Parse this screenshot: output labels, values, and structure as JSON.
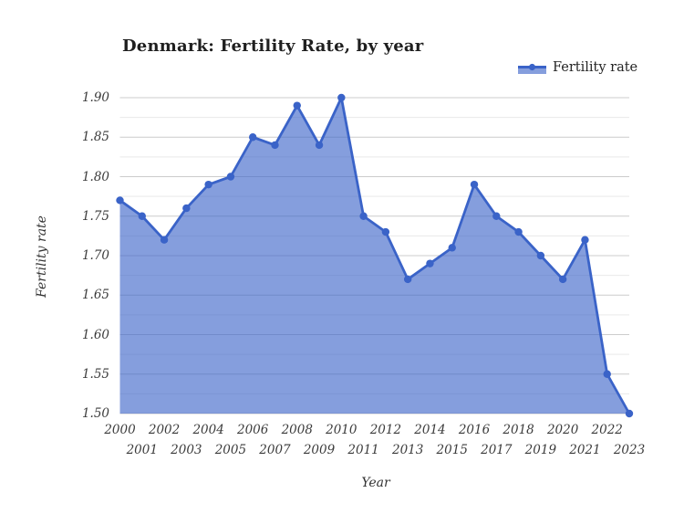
{
  "chart_data": {
    "type": "area",
    "title": "Denmark: Fertility Rate, by year",
    "xlabel": "Year",
    "ylabel": "Fertility rate",
    "legend_position": "top-right",
    "x": [
      2000,
      2001,
      2002,
      2003,
      2004,
      2005,
      2006,
      2007,
      2008,
      2009,
      2010,
      2011,
      2012,
      2013,
      2014,
      2015,
      2016,
      2017,
      2018,
      2019,
      2020,
      2021,
      2022,
      2023
    ],
    "series": [
      {
        "name": "Fertility rate",
        "values": [
          1.77,
          1.75,
          1.72,
          1.76,
          1.79,
          1.8,
          1.85,
          1.84,
          1.89,
          1.84,
          1.9,
          1.75,
          1.73,
          1.67,
          1.69,
          1.71,
          1.79,
          1.75,
          1.73,
          1.7,
          1.67,
          1.72,
          1.55,
          1.5
        ]
      }
    ],
    "ylim": [
      1.5,
      1.9
    ],
    "yticks": [
      "1.50",
      "1.55",
      "1.60",
      "1.65",
      "1.70",
      "1.75",
      "1.80",
      "1.85",
      "1.90"
    ],
    "grid": {
      "major": true,
      "minor": true
    },
    "x_labels_staggered": true
  },
  "colors": {
    "line": "#3a63c8",
    "fill": "#7d99dc",
    "grid_major": "#cccccc",
    "grid_minor": "#e9e9e9",
    "axis_text": "#3b3b3b",
    "title_text": "#1f1f1f"
  }
}
